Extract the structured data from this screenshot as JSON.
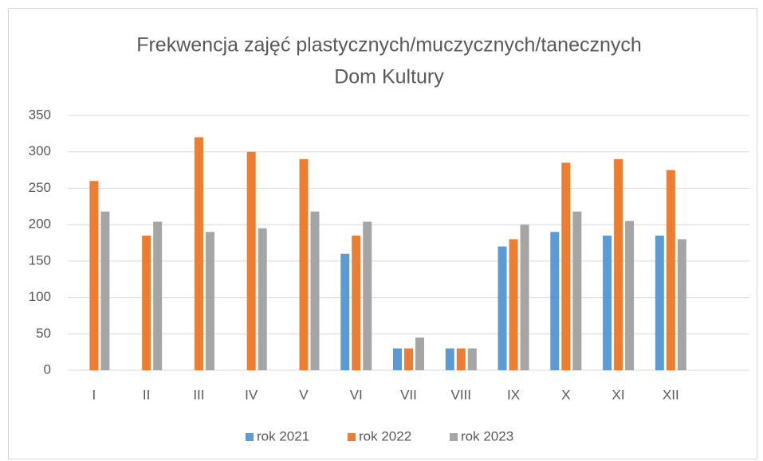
{
  "chart_data": {
    "type": "bar",
    "title": [
      "Frekwencja zajęć plastycznych/muczycznych/tanecznych",
      "Dom Kultury"
    ],
    "categories": [
      "I",
      "II",
      "III",
      "IV",
      "V",
      "VI",
      "VII",
      "VIII",
      "IX",
      "X",
      "XI",
      "XII",
      null
    ],
    "series": [
      {
        "name": "rok 2021",
        "color": "#5b9bd5",
        "values": [
          null,
          null,
          null,
          null,
          null,
          160,
          30,
          30,
          170,
          190,
          185,
          185,
          null
        ]
      },
      {
        "name": "rok 2022",
        "color": "#ed7d31",
        "values": [
          260,
          185,
          320,
          300,
          290,
          185,
          30,
          30,
          180,
          285,
          290,
          275,
          null
        ]
      },
      {
        "name": "rok 2023",
        "color": "#a5a5a5",
        "values": [
          218,
          204,
          190,
          195,
          218,
          204,
          45,
          30,
          200,
          218,
          205,
          180,
          null
        ]
      }
    ],
    "ylim": [
      0,
      350
    ],
    "yticks": [
      0,
      50,
      100,
      150,
      200,
      250,
      300,
      350
    ],
    "grid": true,
    "legend": "bottom"
  }
}
